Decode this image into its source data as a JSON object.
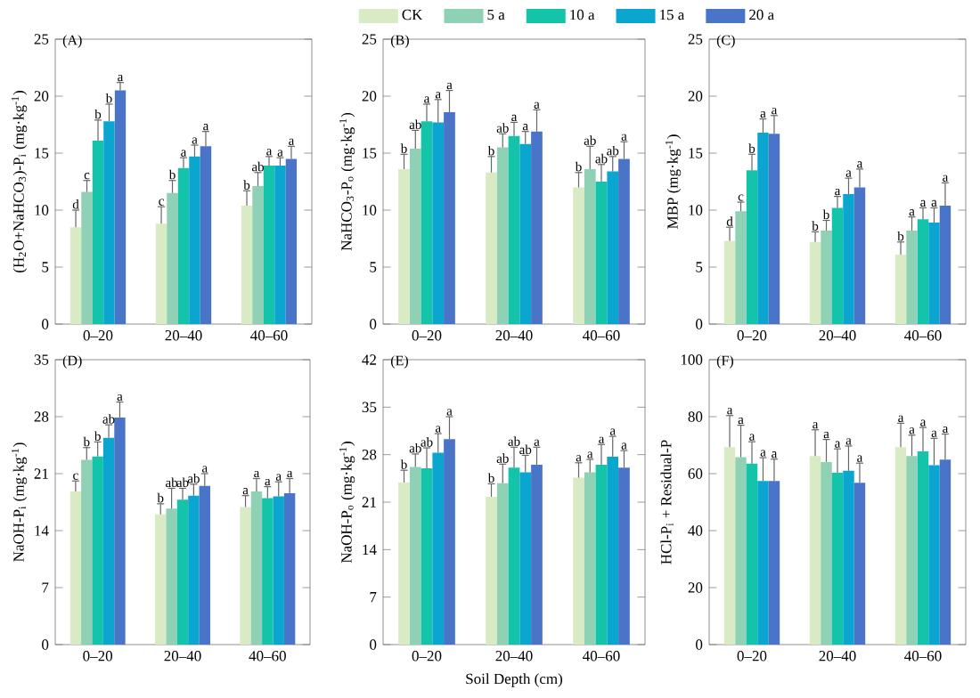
{
  "chart_data": [
    {
      "type": "bar",
      "title": "(A)",
      "ylabel": "(H$_{2}$O+NaHCO$_{3}$)-P$_{i}$ (mg·kg$^{-1}$)",
      "categories": [
        "0–20",
        "20–40",
        "40–60"
      ],
      "ylim": [
        0,
        25
      ],
      "yticks": [
        0,
        5,
        10,
        15,
        20,
        25
      ],
      "legend": "top",
      "series": [
        {
          "name": "CK",
          "color": "#d9ebc4",
          "values": [
            8.5,
            8.8,
            10.4
          ],
          "errors": [
            1.5,
            1.5,
            1.3
          ],
          "value_labels": [
            "d",
            "c",
            "b"
          ]
        },
        {
          "name": "5 a",
          "color": "#8fd1b5",
          "values": [
            11.6,
            11.5,
            12.1
          ],
          "errors": [
            1.0,
            1.1,
            1.2
          ],
          "value_labels": [
            "c",
            "b",
            "ab"
          ]
        },
        {
          "name": "10 a",
          "color": "#14c4aa",
          "values": [
            16.1,
            13.7,
            13.9
          ],
          "errors": [
            1.8,
            0.9,
            0.8
          ],
          "value_labels": [
            "b",
            "a",
            "a"
          ]
        },
        {
          "name": "15 a",
          "color": "#0aa6d0",
          "values": [
            17.8,
            14.7,
            13.9
          ],
          "errors": [
            1.5,
            1.0,
            0.7
          ],
          "value_labels": [
            "b",
            "a",
            "a"
          ]
        },
        {
          "name": "20 a",
          "color": "#4a74c8",
          "values": [
            20.5,
            15.6,
            14.5
          ],
          "errors": [
            0.7,
            1.3,
            1.1
          ],
          "value_labels": [
            "a",
            "a",
            "a"
          ]
        }
      ]
    },
    {
      "type": "bar",
      "title": "(B)",
      "ylabel": "NaHCO$_{3}$-P$_{o}$ (mg·kg$^{-1}$)",
      "categories": [
        "0–20",
        "20–40",
        "40–60"
      ],
      "ylim": [
        0,
        25
      ],
      "yticks": [
        0,
        5,
        10,
        15,
        20,
        25
      ],
      "series": [
        {
          "color": "#d9ebc4",
          "values": [
            13.6,
            13.3,
            12.0
          ],
          "errors": [
            1.3,
            1.4,
            1.3
          ],
          "value_labels": [
            "b",
            "b",
            "b"
          ]
        },
        {
          "color": "#8fd1b5",
          "values": [
            15.4,
            15.5,
            13.6
          ],
          "errors": [
            1.6,
            1.2,
            2.0
          ],
          "value_labels": [
            "ab",
            "ab",
            "ab"
          ]
        },
        {
          "color": "#14c4aa",
          "values": [
            17.8,
            16.5,
            12.5
          ],
          "errors": [
            1.5,
            1.2,
            1.5
          ],
          "value_labels": [
            "a",
            "a",
            "ab"
          ]
        },
        {
          "color": "#0aa6d0",
          "values": [
            17.7,
            15.8,
            13.4
          ],
          "errors": [
            2.0,
            1.1,
            1.3
          ],
          "value_labels": [
            "a",
            "a",
            "ab"
          ]
        },
        {
          "color": "#4a74c8",
          "values": [
            18.6,
            16.9,
            14.5
          ],
          "errors": [
            1.9,
            1.9,
            1.5
          ],
          "value_labels": [
            "a",
            "a",
            "a"
          ]
        }
      ]
    },
    {
      "type": "bar",
      "title": "(C)",
      "ylabel": "MBP (mg·kg$^{-1}$)",
      "categories": [
        "0–20",
        "20–40",
        "40–60"
      ],
      "ylim": [
        0,
        25
      ],
      "yticks": [
        0,
        5,
        10,
        15,
        20,
        25
      ],
      "series": [
        {
          "color": "#d9ebc4",
          "values": [
            7.3,
            7.2,
            6.1
          ],
          "errors": [
            1.2,
            0.9,
            1.1
          ],
          "value_labels": [
            "d",
            "b",
            "b"
          ]
        },
        {
          "color": "#8fd1b5",
          "values": [
            9.9,
            8.2,
            8.2
          ],
          "errors": [
            0.8,
            0.9,
            1.2
          ],
          "value_labels": [
            "c",
            "b",
            "a"
          ]
        },
        {
          "color": "#14c4aa",
          "values": [
            13.5,
            10.2,
            9.2
          ],
          "errors": [
            1.4,
            1.0,
            1.0
          ],
          "value_labels": [
            "b",
            "a",
            "a"
          ]
        },
        {
          "color": "#0aa6d0",
          "values": [
            16.8,
            11.4,
            8.9
          ],
          "errors": [
            1.2,
            1.4,
            1.3
          ],
          "value_labels": [
            "a",
            "a",
            "a"
          ]
        },
        {
          "color": "#4a74c8",
          "values": [
            16.7,
            12.0,
            10.4
          ],
          "errors": [
            1.6,
            1.6,
            2.0
          ],
          "value_labels": [
            "a",
            "a",
            "a"
          ]
        }
      ]
    },
    {
      "type": "bar",
      "title": "(D)",
      "ylabel": "NaOH-P$_{i}$ (mg·kg$^{-1}$)",
      "categories": [
        "0–20",
        "20–40",
        "40–60"
      ],
      "ylim": [
        0,
        35
      ],
      "yticks": [
        0,
        7,
        14,
        21,
        28,
        35
      ],
      "series": [
        {
          "color": "#d9ebc4",
          "values": [
            18.8,
            16.0,
            16.9
          ],
          "errors": [
            1.3,
            1.3,
            1.4
          ],
          "value_labels": [
            "c",
            "b",
            "a"
          ]
        },
        {
          "color": "#8fd1b5",
          "values": [
            22.7,
            16.7,
            18.8
          ],
          "errors": [
            1.5,
            2.5,
            1.6
          ],
          "value_labels": [
            "b",
            "ab",
            "a"
          ]
        },
        {
          "color": "#14c4aa",
          "values": [
            23.1,
            17.8,
            18.0
          ],
          "errors": [
            1.8,
            1.4,
            1.4
          ],
          "value_labels": [
            "b",
            "ab",
            "a"
          ]
        },
        {
          "color": "#0aa6d0",
          "values": [
            25.4,
            18.3,
            18.2
          ],
          "errors": [
            1.6,
            1.4,
            1.8
          ],
          "value_labels": [
            "ab",
            "ab",
            "a"
          ]
        },
        {
          "color": "#4a74c8",
          "values": [
            27.9,
            19.5,
            18.6
          ],
          "errors": [
            1.9,
            1.5,
            1.8
          ],
          "value_labels": [
            "a",
            "a",
            "a"
          ]
        }
      ]
    },
    {
      "type": "bar",
      "title": "(E)",
      "xlabel": "Soil Depth (cm)",
      "ylabel": "NaOH-P$_{o}$ (mg·kg$^{-1}$)",
      "categories": [
        "0–20",
        "20–40",
        "40–60"
      ],
      "ylim": [
        0,
        42
      ],
      "yticks": [
        0,
        7,
        14,
        21,
        28,
        35,
        42
      ],
      "series": [
        {
          "color": "#d9ebc4",
          "values": [
            23.9,
            21.8,
            24.6
          ],
          "errors": [
            1.8,
            1.9,
            2.2
          ],
          "value_labels": [
            "b",
            "b",
            "a"
          ]
        },
        {
          "color": "#8fd1b5",
          "values": [
            26.2,
            23.8,
            25.4
          ],
          "errors": [
            1.9,
            2.8,
            1.9
          ],
          "value_labels": [
            "ab",
            "ab",
            "a"
          ]
        },
        {
          "color": "#14c4aa",
          "values": [
            26.0,
            26.1,
            26.5
          ],
          "errors": [
            3.0,
            3.0,
            3.0
          ],
          "value_labels": [
            "ab",
            "ab",
            "a"
          ]
        },
        {
          "color": "#0aa6d0",
          "values": [
            28.3,
            25.4,
            27.7
          ],
          "errors": [
            2.8,
            2.5,
            3.0
          ],
          "value_labels": [
            "a",
            "ab",
            "a"
          ]
        },
        {
          "color": "#4a74c8",
          "values": [
            30.3,
            26.5,
            26.1
          ],
          "errors": [
            3.3,
            2.6,
            2.5
          ],
          "value_labels": [
            "a",
            "a",
            "a"
          ]
        }
      ]
    },
    {
      "type": "bar",
      "title": "(F)",
      "ylabel": "HCl-P$_{i}$ + Residual-P",
      "categories": [
        "0–20",
        "20–40",
        "40–60"
      ],
      "ylim": [
        0,
        100
      ],
      "yticks": [
        0,
        20,
        40,
        60,
        80,
        100
      ],
      "series": [
        {
          "color": "#d9ebc4",
          "values": [
            69.3,
            66.2,
            69.3
          ],
          "errors": [
            11.1,
            9.2,
            8.4
          ],
          "value_labels": [
            "a",
            "a",
            "a"
          ]
        },
        {
          "color": "#8fd1b5",
          "values": [
            65.8,
            64.1,
            66.2
          ],
          "errors": [
            11.2,
            7.9,
            7.3
          ],
          "value_labels": [
            "a",
            "a",
            "a"
          ]
        },
        {
          "color": "#14c4aa",
          "values": [
            63.5,
            60.3,
            67.8
          ],
          "errors": [
            7.7,
            8.4,
            8.4
          ],
          "value_labels": [
            "a",
            "a",
            "a"
          ]
        },
        {
          "color": "#0aa6d0",
          "values": [
            57.4,
            61.0,
            63.0
          ],
          "errors": [
            8.2,
            8.7,
            9.4
          ],
          "value_labels": [
            "a",
            "a",
            "a"
          ]
        },
        {
          "color": "#4a74c8",
          "values": [
            57.4,
            56.8,
            64.9
          ],
          "errors": [
            7.7,
            6.9,
            9.0
          ],
          "value_labels": [
            "a",
            "a",
            "a"
          ]
        }
      ]
    }
  ]
}
